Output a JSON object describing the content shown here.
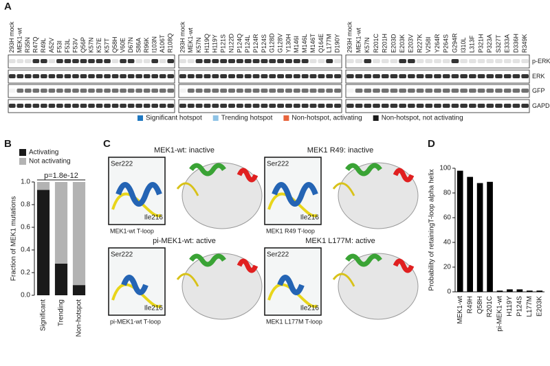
{
  "panel_a": {
    "label": "A",
    "rows": [
      "p-ERK",
      "ERK",
      "GFP",
      "GAPDH"
    ],
    "groups": [
      {
        "lanes": [
          {
            "name": "293H mock",
            "color": "#1a1a1a"
          },
          {
            "name": "MEK1-wt",
            "color": "#1a1a1a"
          },
          {
            "name": "R35N",
            "color": "#1a1a1a"
          },
          {
            "name": "R47Q",
            "color": "#8ec3e6"
          },
          {
            "name": "R49L",
            "color": "#8ec3e6"
          },
          {
            "name": "A52V",
            "color": "#1a1a1a"
          },
          {
            "name": "F53I",
            "color": "#1f78c1"
          },
          {
            "name": "F53L",
            "color": "#1f78c1"
          },
          {
            "name": "F53V",
            "color": "#1f78c1"
          },
          {
            "name": "Q56P",
            "color": "#1f78c1"
          },
          {
            "name": "K57N",
            "color": "#1f78c1"
          },
          {
            "name": "K57E",
            "color": "#1f78c1"
          },
          {
            "name": "K57T",
            "color": "#1f78c1"
          },
          {
            "name": "Q58H",
            "color": "#1a1a1a"
          },
          {
            "name": "V60E",
            "color": "#e8643c"
          },
          {
            "name": "D67N",
            "color": "#1f78c1"
          },
          {
            "name": "S86A",
            "color": "#1a1a1a"
          },
          {
            "name": "R96K",
            "color": "#1a1a1a"
          },
          {
            "name": "I103N",
            "color": "#e8643c"
          },
          {
            "name": "A106T",
            "color": "#1a1a1a"
          },
          {
            "name": "R108Q",
            "color": "#8ec3e6"
          }
        ]
      },
      {
        "lanes": [
          {
            "name": "293H mock",
            "color": "#1a1a1a"
          },
          {
            "name": "MEK1-wt",
            "color": "#1a1a1a"
          },
          {
            "name": "K57N",
            "color": "#1f78c1"
          },
          {
            "name": "H119Q",
            "color": "#e8643c"
          },
          {
            "name": "H119Y",
            "color": "#e8643c"
          },
          {
            "name": "P121S",
            "color": "#1f78c1"
          },
          {
            "name": "N122D",
            "color": "#1f78c1"
          },
          {
            "name": "P124Q",
            "color": "#1f78c1"
          },
          {
            "name": "P124L",
            "color": "#1f78c1"
          },
          {
            "name": "P124R",
            "color": "#1f78c1"
          },
          {
            "name": "P124S",
            "color": "#1f78c1"
          },
          {
            "name": "G128D",
            "color": "#1f78c1"
          },
          {
            "name": "G128V",
            "color": "#1f78c1"
          },
          {
            "name": "Y130H",
            "color": "#1f78c1"
          },
          {
            "name": "M146I",
            "color": "#1f78c1"
          },
          {
            "name": "M146L",
            "color": "#1f78c1"
          },
          {
            "name": "M146T",
            "color": "#1a1a1a"
          },
          {
            "name": "Q164E",
            "color": "#1a1a1a"
          },
          {
            "name": "L177M",
            "color": "#8ec3e6"
          },
          {
            "name": "D190Y",
            "color": "#1a1a1a"
          }
        ]
      },
      {
        "lanes": [
          {
            "name": "293H mock",
            "color": "#1a1a1a"
          },
          {
            "name": "MEK1-wt",
            "color": "#1a1a1a"
          },
          {
            "name": "K57N",
            "color": "#1f78c1"
          },
          {
            "name": "R201C",
            "color": "#1a1a1a"
          },
          {
            "name": "R201H",
            "color": "#1a1a1a"
          },
          {
            "name": "E203D",
            "color": "#1a1a1a"
          },
          {
            "name": "E203K",
            "color": "#1f78c1"
          },
          {
            "name": "E203V",
            "color": "#1f78c1"
          },
          {
            "name": "R227K",
            "color": "#1a1a1a"
          },
          {
            "name": "V258I",
            "color": "#1a1a1a"
          },
          {
            "name": "Y264R",
            "color": "#1a1a1a"
          },
          {
            "name": "P264S",
            "color": "#1a1a1a"
          },
          {
            "name": "G294R",
            "color": "#8ec3e6"
          },
          {
            "name": "I310L",
            "color": "#1a1a1a"
          },
          {
            "name": "L313F",
            "color": "#1a1a1a"
          },
          {
            "name": "P321H",
            "color": "#1a1a1a"
          },
          {
            "name": "P323A",
            "color": "#1a1a1a"
          },
          {
            "name": "S327T",
            "color": "#1a1a1a"
          },
          {
            "name": "E333A",
            "color": "#1a1a1a"
          },
          {
            "name": "D336H",
            "color": "#1a1a1a"
          },
          {
            "name": "R349K",
            "color": "#1a1a1a"
          }
        ]
      }
    ],
    "legend": [
      {
        "label": "Significant hotspot",
        "color": "#1f78c1"
      },
      {
        "label": "Trending hotspot",
        "color": "#8ec3e6"
      },
      {
        "label": "Non-hotspot, activating",
        "color": "#e8643c"
      },
      {
        "label": "Non-hotspot, not activating",
        "color": "#1a1a1a"
      }
    ]
  },
  "panel_c": {
    "label": "C",
    "tiles": [
      {
        "title": "MEK1-wt: inactive",
        "top": "Ser222",
        "bottom": "Ile216",
        "caption": "MEK1-wt T-loop"
      },
      {
        "title": "MEK1 R49: inactive",
        "top": "Ser222",
        "bottom": "Ile216",
        "caption": "MEK1 R49 T-loop"
      },
      {
        "title": "pi-MEK1-wt: active",
        "top": "Ser222",
        "bottom": "Ile216",
        "caption": "pi-MEK1-wt T-loop"
      },
      {
        "title": "MEK1 L177M: active",
        "top": "Ser222",
        "bottom": "Ile216",
        "caption": "MEK1 L177M T-loop"
      }
    ]
  },
  "chart_data": [
    {
      "type": "stacked_bar",
      "panel": "B",
      "ylabel": "Fraction of MEK1 mutations",
      "annotation": "p=1.8e-12",
      "categories": [
        "Significant",
        "Trending",
        "Non-hotspot"
      ],
      "series": [
        {
          "name": "Activating",
          "color": "#1a1a1a",
          "values": [
            0.93,
            0.28,
            0.09
          ]
        },
        {
          "name": "Not activating",
          "color": "#b3b3b3",
          "values": [
            0.07,
            0.72,
            0.91
          ]
        }
      ],
      "ylim": [
        0,
        1
      ],
      "yticks": [
        {
          "value": 0,
          "label": "0.0"
        },
        {
          "value": 0.2,
          "label": "0.2"
        },
        {
          "value": 0.4,
          "label": "0.4"
        },
        {
          "value": 0.6,
          "label": "0.6"
        },
        {
          "value": 0.8,
          "label": "0.8"
        },
        {
          "value": 1,
          "label": "1.0"
        }
      ]
    },
    {
      "type": "bar",
      "panel": "D",
      "ylabel": "Probability of retainingT-loop alpha helix",
      "categories": [
        "MEK1-wt",
        "R49H",
        "Q58H",
        "R201C",
        "pi-MEK1-wt",
        "H119Y",
        "P124S",
        "L177M",
        "E203K"
      ],
      "category_colors": [
        "#1a1a1a",
        "#8ec3e6",
        "#1a1a1a",
        "#1a1a1a",
        "#1a1a1a",
        "#e8643c",
        "#1f78c1",
        "#8ec3e6",
        "#1f78c1"
      ],
      "values": [
        98,
        93,
        88,
        89,
        1,
        2,
        2,
        1,
        1
      ],
      "color": "#000000",
      "ylim": [
        0,
        100
      ],
      "yticks": [
        0,
        20,
        40,
        60,
        80,
        100
      ]
    }
  ]
}
